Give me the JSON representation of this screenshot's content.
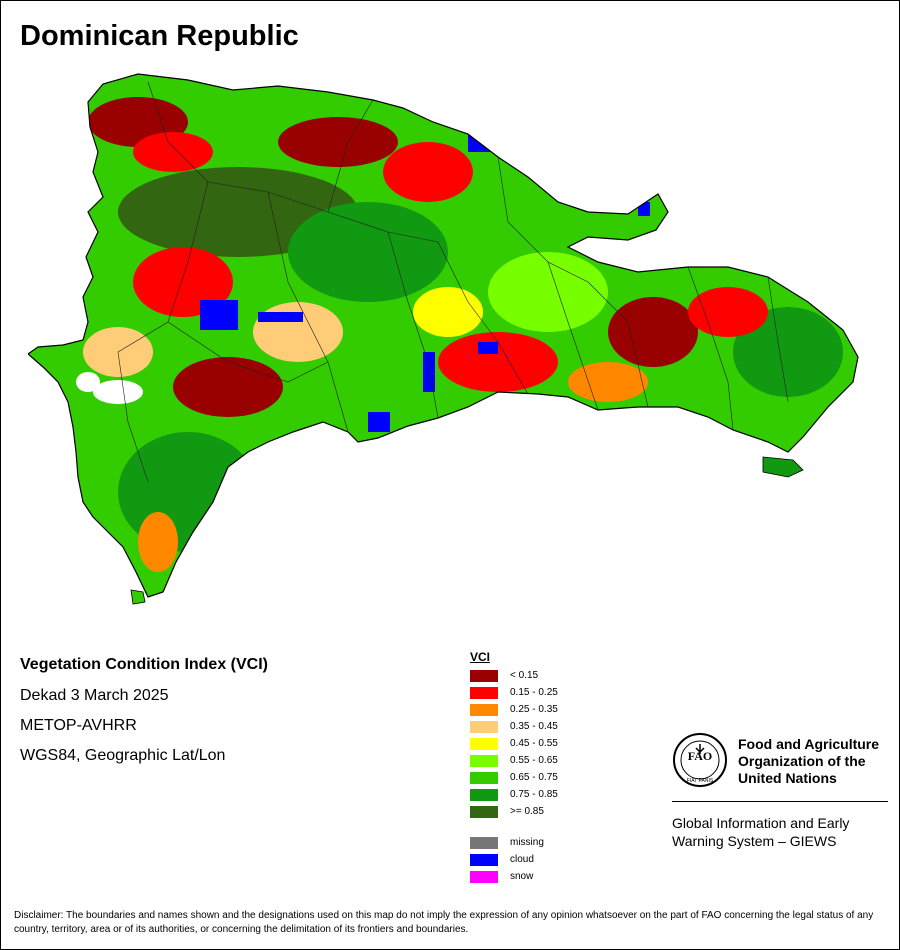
{
  "map": {
    "title": "Dominican Republic",
    "index_name": "Vegetation Condition Index (VCI)",
    "period": "Dekad 3 March 2025",
    "sensor": "METOP-AVHRR",
    "projection": "WGS84, Geographic Lat/Lon"
  },
  "legend": {
    "title": "VCI",
    "classes": [
      {
        "label": "< 0.15",
        "color": "#990000"
      },
      {
        "label": "0.15 - 0.25",
        "color": "#ff0000"
      },
      {
        "label": "0.25 - 0.35",
        "color": "#ff8800"
      },
      {
        "label": "0.35 - 0.45",
        "color": "#ffcc77"
      },
      {
        "label": "0.45 - 0.55",
        "color": "#ffff00"
      },
      {
        "label": "0.55 - 0.65",
        "color": "#77ff00"
      },
      {
        "label": "0.65 - 0.75",
        "color": "#33cc00"
      },
      {
        "label": "0.75 - 0.85",
        "color": "#119911"
      },
      {
        "label": ">= 0.85",
        "color": "#336611"
      }
    ],
    "special": [
      {
        "label": "missing",
        "color": "#777777"
      },
      {
        "label": "cloud",
        "color": "#0000ff"
      },
      {
        "label": "snow",
        "color": "#ff00ff"
      }
    ]
  },
  "fao": {
    "org_line1": "Food and Agriculture",
    "org_line2": "Organization of the",
    "org_line3": "United Nations",
    "system_line1": "Global Information and Early",
    "system_line2": "Warning System – GIEWS",
    "logo_text": "FIAT PANIS"
  },
  "disclaimer": "Disclaimer: The boundaries and names shown and the designations used on this map do not imply the expression of any opinion whatsoever on the part of FAO concerning the legal status of any country, territory, area or of its authorities, or concerning the delimitation of its frontiers and boundaries."
}
